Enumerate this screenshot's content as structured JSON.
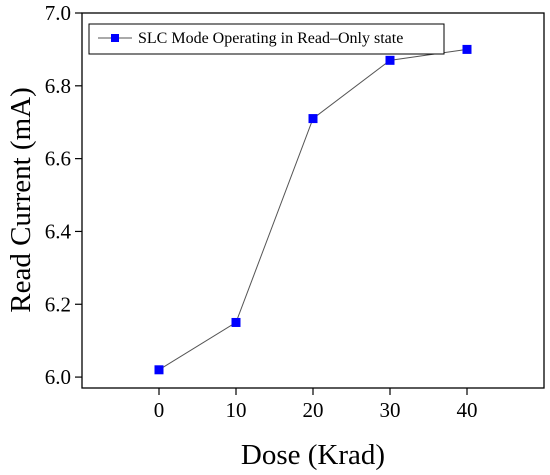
{
  "chart_data": {
    "type": "line",
    "xlabel": "Dose (Krad)",
    "ylabel": "Read Current (mA)",
    "x_ticks": [
      "0",
      "10",
      "20",
      "30",
      "40"
    ],
    "y_ticks": [
      "6.0",
      "6.2",
      "6.4",
      "6.6",
      "6.8",
      "7.0"
    ],
    "xlim": [
      -10,
      50
    ],
    "ylim": [
      5.97,
      7.0
    ],
    "legend_position": "top-left",
    "grid": false,
    "series": [
      {
        "name": "SLC Mode Operating in Read–Only state",
        "marker": "square",
        "marker_color": "#0000ff",
        "line_color": "#555555",
        "x": [
          0,
          10,
          20,
          30,
          40
        ],
        "y": [
          6.02,
          6.15,
          6.71,
          6.87,
          6.9
        ]
      }
    ]
  }
}
